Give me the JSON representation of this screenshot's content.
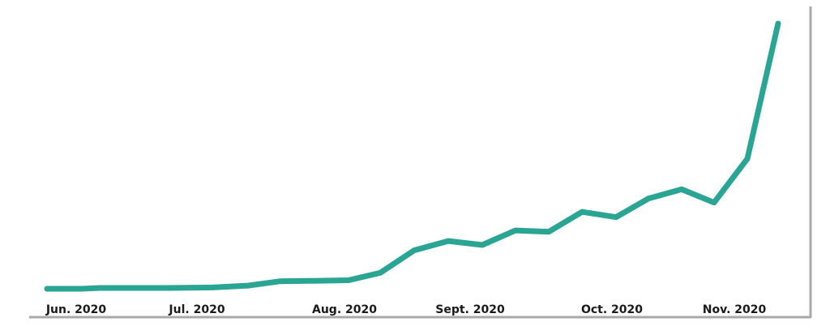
{
  "chart_data": {
    "type": "line",
    "title": "",
    "xlabel": "",
    "ylabel": "",
    "x_tick_labels": [
      "Jun. 2020",
      "Jul. 2020",
      "Aug. 2020",
      "Sept. 2020",
      "Oct. 2020",
      "Nov. 2020"
    ],
    "x": [
      0,
      1,
      2,
      3,
      4,
      5,
      6,
      7,
      8,
      9,
      10,
      11,
      12,
      13,
      14,
      15,
      16,
      17,
      18,
      19,
      20,
      21,
      22
    ],
    "series": [
      {
        "name": "",
        "color": "#2aa593",
        "values": [
          0.0,
          0.0,
          0.3,
          0.3,
          0.3,
          0.5,
          1.2,
          2.8,
          3.0,
          3.2,
          6.0,
          14.5,
          18.0,
          16.5,
          22.0,
          21.5,
          29.0,
          27.0,
          34.0,
          37.5,
          32.5,
          49.0,
          100.0
        ]
      }
    ],
    "ylim": [
      0,
      100
    ],
    "grid": false,
    "legend": "none"
  }
}
